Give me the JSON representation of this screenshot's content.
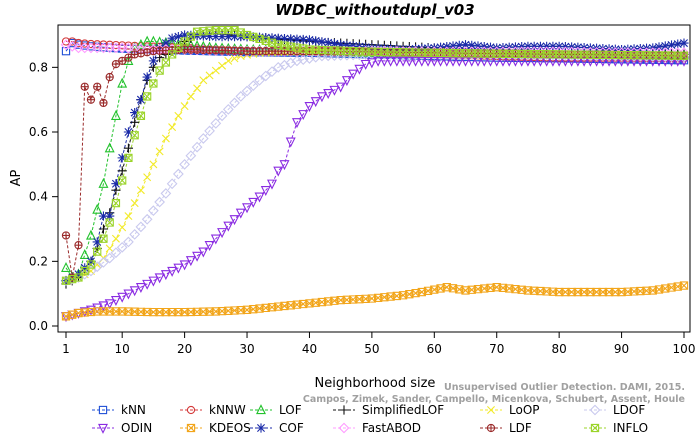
{
  "chart_data": {
    "type": "line",
    "title": "WDBC_withoutdupl_v03",
    "xlabel": "Neighborhood size",
    "ylabel": "AP",
    "xlim": [
      1,
      100
    ],
    "ylim": [
      0,
      0.9
    ],
    "x_ticks": [
      1,
      10,
      20,
      30,
      40,
      50,
      60,
      70,
      80,
      90,
      100
    ],
    "y_ticks": [
      0.0,
      0.2,
      0.4,
      0.6,
      0.8
    ],
    "y_tick_labels": [
      "0.0",
      "0.2",
      "0.4",
      "0.6",
      "0.8"
    ],
    "legend_placement": "bottom",
    "credit_lines": [
      "Unsupervised Outlier Detection. DAMI, 2015.",
      "Campos, Zimek, Sander, Campello, Micenkova, Schubert, Assent, Houle"
    ],
    "series": [
      {
        "name": "kNN",
        "color": "#1f4fd6",
        "marker": "square",
        "points": [
          [
            1,
            0.85
          ],
          [
            2,
            0.875
          ],
          [
            3,
            0.87
          ],
          [
            5,
            0.865
          ],
          [
            10,
            0.858
          ],
          [
            20,
            0.852
          ],
          [
            30,
            0.847
          ],
          [
            40,
            0.845
          ],
          [
            50,
            0.84
          ],
          [
            60,
            0.835
          ],
          [
            70,
            0.83
          ],
          [
            80,
            0.828
          ],
          [
            90,
            0.825
          ],
          [
            100,
            0.822
          ]
        ]
      },
      {
        "name": "kNNW",
        "color": "#d43a3a",
        "marker": "circle",
        "points": [
          [
            1,
            0.88
          ],
          [
            2,
            0.88
          ],
          [
            3,
            0.875
          ],
          [
            5,
            0.872
          ],
          [
            10,
            0.868
          ],
          [
            20,
            0.86
          ],
          [
            30,
            0.852
          ],
          [
            40,
            0.848
          ],
          [
            50,
            0.845
          ],
          [
            60,
            0.84
          ],
          [
            70,
            0.835
          ],
          [
            80,
            0.83
          ],
          [
            90,
            0.83
          ],
          [
            100,
            0.828
          ]
        ]
      },
      {
        "name": "LOF",
        "color": "#22c22c",
        "marker": "triangle",
        "points": [
          [
            1,
            0.18
          ],
          [
            2,
            0.15
          ],
          [
            3,
            0.16
          ],
          [
            4,
            0.22
          ],
          [
            5,
            0.28
          ],
          [
            6,
            0.36
          ],
          [
            7,
            0.44
          ],
          [
            8,
            0.55
          ],
          [
            9,
            0.65
          ],
          [
            10,
            0.75
          ],
          [
            11,
            0.82
          ],
          [
            12,
            0.86
          ],
          [
            13,
            0.87
          ],
          [
            14,
            0.88
          ],
          [
            15,
            0.88
          ],
          [
            20,
            0.87
          ],
          [
            25,
            0.86
          ],
          [
            30,
            0.855
          ],
          [
            40,
            0.85
          ],
          [
            50,
            0.845
          ],
          [
            60,
            0.845
          ],
          [
            70,
            0.845
          ],
          [
            80,
            0.84
          ],
          [
            90,
            0.84
          ],
          [
            100,
            0.838
          ]
        ]
      },
      {
        "name": "SimplifiedLOF",
        "color": "#111111",
        "marker": "plus",
        "points": [
          [
            1,
            0.13
          ],
          [
            2,
            0.14
          ],
          [
            3,
            0.15
          ],
          [
            4,
            0.17
          ],
          [
            5,
            0.2
          ],
          [
            6,
            0.24
          ],
          [
            7,
            0.3
          ],
          [
            8,
            0.35
          ],
          [
            9,
            0.42
          ],
          [
            10,
            0.48
          ],
          [
            11,
            0.55
          ],
          [
            12,
            0.63
          ],
          [
            13,
            0.7
          ],
          [
            14,
            0.76
          ],
          [
            15,
            0.8
          ],
          [
            16,
            0.83
          ],
          [
            18,
            0.85
          ],
          [
            20,
            0.88
          ],
          [
            22,
            0.9
          ],
          [
            25,
            0.905
          ],
          [
            30,
            0.895
          ],
          [
            40,
            0.88
          ],
          [
            50,
            0.87
          ],
          [
            60,
            0.86
          ],
          [
            70,
            0.855
          ],
          [
            80,
            0.85
          ],
          [
            90,
            0.845
          ],
          [
            100,
            0.84
          ]
        ]
      },
      {
        "name": "LoOP",
        "color": "#f2ea2a",
        "marker": "x",
        "points": [
          [
            1,
            0.14
          ],
          [
            2,
            0.145
          ],
          [
            3,
            0.15
          ],
          [
            5,
            0.17
          ],
          [
            7,
            0.21
          ],
          [
            9,
            0.27
          ],
          [
            11,
            0.34
          ],
          [
            13,
            0.42
          ],
          [
            15,
            0.5
          ],
          [
            17,
            0.58
          ],
          [
            19,
            0.65
          ],
          [
            21,
            0.71
          ],
          [
            23,
            0.76
          ],
          [
            25,
            0.79
          ],
          [
            27,
            0.82
          ],
          [
            29,
            0.835
          ],
          [
            32,
            0.845
          ],
          [
            40,
            0.85
          ],
          [
            50,
            0.85
          ],
          [
            60,
            0.848
          ],
          [
            70,
            0.845
          ],
          [
            80,
            0.845
          ],
          [
            90,
            0.842
          ],
          [
            100,
            0.84
          ]
        ]
      },
      {
        "name": "LDOF",
        "color": "#c9c9ee",
        "marker": "diamond",
        "points": [
          [
            1,
            0.14
          ],
          [
            3,
            0.15
          ],
          [
            5,
            0.17
          ],
          [
            8,
            0.21
          ],
          [
            11,
            0.26
          ],
          [
            14,
            0.33
          ],
          [
            17,
            0.41
          ],
          [
            20,
            0.5
          ],
          [
            23,
            0.58
          ],
          [
            26,
            0.65
          ],
          [
            29,
            0.71
          ],
          [
            32,
            0.76
          ],
          [
            35,
            0.8
          ],
          [
            38,
            0.82
          ],
          [
            42,
            0.835
          ],
          [
            50,
            0.84
          ],
          [
            60,
            0.84
          ],
          [
            70,
            0.84
          ],
          [
            80,
            0.838
          ],
          [
            90,
            0.835
          ],
          [
            100,
            0.832
          ]
        ]
      },
      {
        "name": "ODIN",
        "color": "#8a2be2",
        "marker": "triangle-down",
        "points": [
          [
            1,
            0.03
          ],
          [
            3,
            0.04
          ],
          [
            5,
            0.05
          ],
          [
            8,
            0.07
          ],
          [
            11,
            0.1
          ],
          [
            14,
            0.13
          ],
          [
            17,
            0.16
          ],
          [
            20,
            0.19
          ],
          [
            23,
            0.23
          ],
          [
            26,
            0.29
          ],
          [
            29,
            0.35
          ],
          [
            32,
            0.4
          ],
          [
            34,
            0.44
          ],
          [
            35,
            0.48
          ],
          [
            36,
            0.5
          ],
          [
            37,
            0.57
          ],
          [
            38,
            0.63
          ],
          [
            40,
            0.68
          ],
          [
            42,
            0.71
          ],
          [
            44,
            0.73
          ],
          [
            45,
            0.74
          ],
          [
            47,
            0.78
          ],
          [
            49,
            0.81
          ],
          [
            51,
            0.82
          ],
          [
            60,
            0.82
          ],
          [
            70,
            0.82
          ],
          [
            80,
            0.82
          ],
          [
            90,
            0.82
          ],
          [
            100,
            0.82
          ]
        ]
      },
      {
        "name": "KDEOS",
        "color": "#f2a51a",
        "marker": "square-x",
        "points": [
          [
            1,
            0.03
          ],
          [
            3,
            0.04
          ],
          [
            6,
            0.045
          ],
          [
            10,
            0.045
          ],
          [
            15,
            0.043
          ],
          [
            20,
            0.043
          ],
          [
            25,
            0.045
          ],
          [
            30,
            0.05
          ],
          [
            35,
            0.06
          ],
          [
            40,
            0.07
          ],
          [
            45,
            0.08
          ],
          [
            50,
            0.085
          ],
          [
            55,
            0.095
          ],
          [
            58,
            0.105
          ],
          [
            62,
            0.12
          ],
          [
            65,
            0.11
          ],
          [
            70,
            0.12
          ],
          [
            75,
            0.11
          ],
          [
            80,
            0.105
          ],
          [
            85,
            0.105
          ],
          [
            90,
            0.105
          ],
          [
            95,
            0.11
          ],
          [
            100,
            0.125
          ]
        ]
      },
      {
        "name": "COF",
        "color": "#1a2aa8",
        "marker": "star",
        "points": [
          [
            1,
            0.14
          ],
          [
            2,
            0.15
          ],
          [
            3,
            0.16
          ],
          [
            5,
            0.2
          ],
          [
            6,
            0.26
          ],
          [
            7,
            0.34
          ],
          [
            8,
            0.34
          ],
          [
            9,
            0.44
          ],
          [
            10,
            0.52
          ],
          [
            11,
            0.6
          ],
          [
            12,
            0.66
          ],
          [
            13,
            0.7
          ],
          [
            14,
            0.77
          ],
          [
            15,
            0.82
          ],
          [
            16,
            0.86
          ],
          [
            18,
            0.89
          ],
          [
            20,
            0.9
          ],
          [
            25,
            0.895
          ],
          [
            30,
            0.895
          ],
          [
            35,
            0.89
          ],
          [
            40,
            0.885
          ],
          [
            45,
            0.87
          ],
          [
            50,
            0.86
          ],
          [
            55,
            0.855
          ],
          [
            60,
            0.86
          ],
          [
            65,
            0.87
          ],
          [
            70,
            0.86
          ],
          [
            75,
            0.865
          ],
          [
            80,
            0.865
          ],
          [
            85,
            0.86
          ],
          [
            90,
            0.855
          ],
          [
            95,
            0.86
          ],
          [
            100,
            0.875
          ]
        ]
      },
      {
        "name": "FastABOD",
        "color": "#ff9cff",
        "marker": "diamond",
        "points": [
          [
            1,
            0.87
          ],
          [
            3,
            0.86
          ],
          [
            5,
            0.86
          ],
          [
            10,
            0.86
          ],
          [
            15,
            0.855
          ],
          [
            20,
            0.855
          ],
          [
            30,
            0.85
          ],
          [
            40,
            0.85
          ],
          [
            50,
            0.85
          ],
          [
            60,
            0.848
          ],
          [
            70,
            0.848
          ],
          [
            80,
            0.848
          ],
          [
            90,
            0.845
          ],
          [
            100,
            0.845
          ]
        ]
      },
      {
        "name": "LDF",
        "color": "#9a2a2a",
        "marker": "circle-plus",
        "points": [
          [
            1,
            0.28
          ],
          [
            2,
            0.15
          ],
          [
            3,
            0.25
          ],
          [
            4,
            0.74
          ],
          [
            5,
            0.7
          ],
          [
            6,
            0.74
          ],
          [
            7,
            0.69
          ],
          [
            8,
            0.77
          ],
          [
            9,
            0.81
          ],
          [
            10,
            0.82
          ],
          [
            11,
            0.83
          ],
          [
            12,
            0.84
          ],
          [
            15,
            0.85
          ],
          [
            20,
            0.855
          ],
          [
            30,
            0.85
          ],
          [
            40,
            0.85
          ],
          [
            50,
            0.848
          ],
          [
            60,
            0.845
          ],
          [
            70,
            0.842
          ],
          [
            80,
            0.84
          ],
          [
            90,
            0.838
          ],
          [
            100,
            0.835
          ]
        ]
      },
      {
        "name": "INFLO",
        "color": "#9bd42a",
        "marker": "hourglass",
        "points": [
          [
            1,
            0.14
          ],
          [
            2,
            0.145
          ],
          [
            3,
            0.15
          ],
          [
            4,
            0.17
          ],
          [
            5,
            0.19
          ],
          [
            6,
            0.23
          ],
          [
            7,
            0.27
          ],
          [
            8,
            0.32
          ],
          [
            9,
            0.38
          ],
          [
            10,
            0.45
          ],
          [
            11,
            0.52
          ],
          [
            12,
            0.59
          ],
          [
            13,
            0.65
          ],
          [
            14,
            0.71
          ],
          [
            15,
            0.75
          ],
          [
            16,
            0.79
          ],
          [
            18,
            0.84
          ],
          [
            20,
            0.88
          ],
          [
            22,
            0.91
          ],
          [
            25,
            0.915
          ],
          [
            28,
            0.915
          ],
          [
            30,
            0.9
          ],
          [
            35,
            0.87
          ],
          [
            40,
            0.855
          ],
          [
            50,
            0.848
          ],
          [
            60,
            0.845
          ],
          [
            70,
            0.842
          ],
          [
            80,
            0.84
          ],
          [
            90,
            0.838
          ],
          [
            100,
            0.836
          ]
        ]
      }
    ]
  }
}
